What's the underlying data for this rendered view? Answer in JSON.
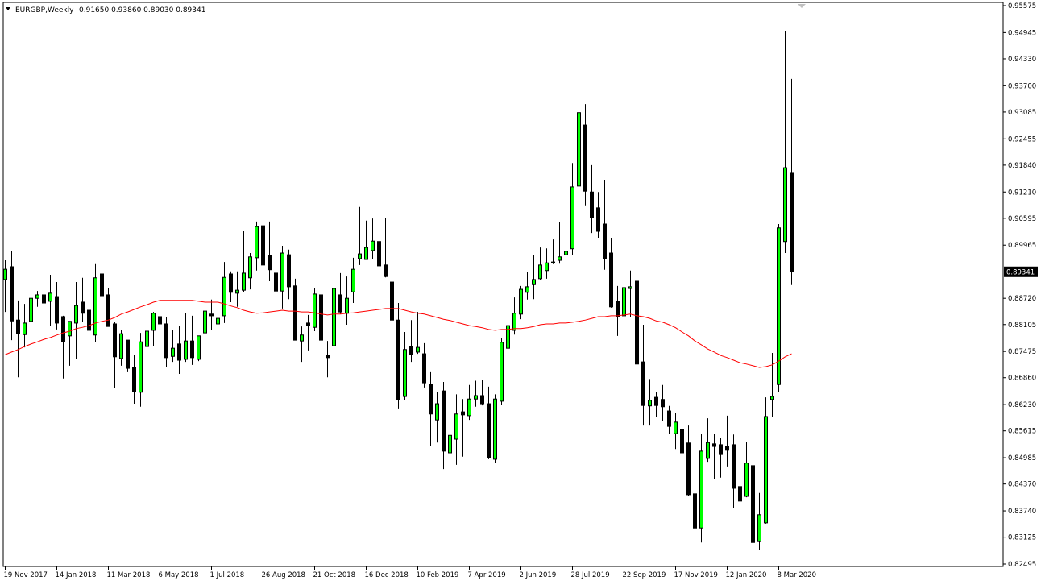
{
  "header": {
    "symbol_timeframe": "EURGBP,Weekly",
    "ohlc": "0.91650 0.93860 0.89030 0.89341",
    "menu_icon": "triangle-down-icon"
  },
  "colors": {
    "bull_body": "#00FF00",
    "bear_body": "#000000",
    "outline": "#000000",
    "moving_average": "#FF0000",
    "bid_line": "#C0C0C0",
    "price_label_bg": "#000000"
  },
  "chart_data": {
    "type": "candlestick",
    "symbol": "EURGBP",
    "timeframe": "Weekly",
    "ylim": [
      0.82495,
      0.95575
    ],
    "current_price": "0.89341",
    "y_ticks": [
      "0.95575",
      "0.94945",
      "0.94330",
      "0.93700",
      "0.93085",
      "0.92455",
      "0.91840",
      "0.91210",
      "0.90595",
      "0.89965",
      "0.88720",
      "0.88105",
      "0.87475",
      "0.86860",
      "0.86230",
      "0.85615",
      "0.84985",
      "0.84370",
      "0.83740",
      "0.83125",
      "0.82495"
    ],
    "x_ticks": [
      "19 Nov 2017",
      "14 Jan 2018",
      "11 Mar 2018",
      "6 May 2018",
      "1 Jul 2018",
      "26 Aug 2018",
      "21 Oct 2018",
      "16 Dec 2018",
      "10 Feb 2019",
      "7 Apr 2019",
      "2 Jun 2019",
      "28 Jul 2019",
      "22 Sep 2019",
      "17 Nov 2019",
      "12 Jan 2020",
      "8 Mar 2020"
    ],
    "x_tick_every_bars": 8,
    "candles_ohlc": [
      [
        0.8916,
        0.8961,
        0.884,
        0.894
      ],
      [
        0.8946,
        0.8982,
        0.8774,
        0.8819
      ],
      [
        0.8821,
        0.8867,
        0.8687,
        0.8789
      ],
      [
        0.8787,
        0.8859,
        0.8757,
        0.8814
      ],
      [
        0.8818,
        0.8889,
        0.8791,
        0.8872
      ],
      [
        0.8872,
        0.8889,
        0.8852,
        0.888
      ],
      [
        0.888,
        0.8923,
        0.8842,
        0.8861
      ],
      [
        0.8865,
        0.8927,
        0.8808,
        0.8884
      ],
      [
        0.8876,
        0.891,
        0.8799,
        0.8814
      ],
      [
        0.8829,
        0.8831,
        0.8684,
        0.877
      ],
      [
        0.8784,
        0.8818,
        0.8714,
        0.8818
      ],
      [
        0.8814,
        0.891,
        0.8729,
        0.8855
      ],
      [
        0.8863,
        0.892,
        0.8816,
        0.8837
      ],
      [
        0.8844,
        0.8844,
        0.8784,
        0.8797
      ],
      [
        0.8786,
        0.8952,
        0.8769,
        0.892
      ],
      [
        0.8929,
        0.8967,
        0.8874,
        0.8878
      ],
      [
        0.888,
        0.8897,
        0.8806,
        0.8806
      ],
      [
        0.8812,
        0.8816,
        0.8661,
        0.8735
      ],
      [
        0.8731,
        0.8797,
        0.8714,
        0.8789
      ],
      [
        0.8774,
        0.8774,
        0.8699,
        0.8708
      ],
      [
        0.871,
        0.874,
        0.8625,
        0.8653
      ],
      [
        0.8652,
        0.8791,
        0.8618,
        0.877
      ],
      [
        0.8759,
        0.8803,
        0.8678,
        0.8795
      ],
      [
        0.8797,
        0.884,
        0.8759,
        0.8837
      ],
      [
        0.8829,
        0.8837,
        0.8727,
        0.8812
      ],
      [
        0.8812,
        0.8827,
        0.871,
        0.8733
      ],
      [
        0.8736,
        0.8797,
        0.8723,
        0.8755
      ],
      [
        0.8765,
        0.8808,
        0.8695,
        0.8727
      ],
      [
        0.8729,
        0.8837,
        0.8723,
        0.8772
      ],
      [
        0.8772,
        0.8831,
        0.8716,
        0.8733
      ],
      [
        0.8729,
        0.8784,
        0.8725,
        0.8784
      ],
      [
        0.8791,
        0.8889,
        0.8778,
        0.8842
      ],
      [
        0.8835,
        0.8869,
        0.8797,
        0.8831
      ],
      [
        0.8812,
        0.8901,
        0.881,
        0.8825
      ],
      [
        0.8831,
        0.8957,
        0.8814,
        0.8921
      ],
      [
        0.8929,
        0.8935,
        0.8863,
        0.8886
      ],
      [
        0.8884,
        0.8935,
        0.8852,
        0.8891
      ],
      [
        0.8891,
        0.9029,
        0.8887,
        0.8931
      ],
      [
        0.892,
        0.8978,
        0.8893,
        0.8969
      ],
      [
        0.8967,
        0.9052,
        0.8937,
        0.904
      ],
      [
        0.9042,
        0.9099,
        0.8935,
        0.895
      ],
      [
        0.8972,
        0.9052,
        0.8912,
        0.8939
      ],
      [
        0.8931,
        0.8957,
        0.8876,
        0.8889
      ],
      [
        0.8889,
        0.8995,
        0.8848,
        0.8978
      ],
      [
        0.8974,
        0.8986,
        0.887,
        0.8899
      ],
      [
        0.8901,
        0.8918,
        0.8774,
        0.8774
      ],
      [
        0.8772,
        0.8806,
        0.8723,
        0.8786
      ],
      [
        0.8814,
        0.8833,
        0.875,
        0.8808
      ],
      [
        0.8804,
        0.8895,
        0.8795,
        0.8882
      ],
      [
        0.888,
        0.8939,
        0.8753,
        0.8774
      ],
      [
        0.8738,
        0.8772,
        0.8687,
        0.8733
      ],
      [
        0.8761,
        0.8904,
        0.8653,
        0.8895
      ],
      [
        0.888,
        0.8931,
        0.8835,
        0.884
      ],
      [
        0.8837,
        0.8923,
        0.881,
        0.8872
      ],
      [
        0.8887,
        0.8967,
        0.8861,
        0.894
      ],
      [
        0.8965,
        0.9086,
        0.895,
        0.8976
      ],
      [
        0.8963,
        0.9054,
        0.8963,
        0.8991
      ],
      [
        0.8984,
        0.9059,
        0.8963,
        0.9006
      ],
      [
        0.9005,
        0.9069,
        0.8927,
        0.8948
      ],
      [
        0.895,
        0.9061,
        0.8921,
        0.8923
      ],
      [
        0.891,
        0.8982,
        0.8757,
        0.8821
      ],
      [
        0.8821,
        0.8861,
        0.8614,
        0.8635
      ],
      [
        0.8642,
        0.8793,
        0.8633,
        0.8752
      ],
      [
        0.8759,
        0.8821,
        0.8723,
        0.874
      ],
      [
        0.8746,
        0.884,
        0.8742,
        0.8757
      ],
      [
        0.8742,
        0.8767,
        0.8663,
        0.8674
      ],
      [
        0.867,
        0.8699,
        0.8527,
        0.8601
      ],
      [
        0.8587,
        0.8653,
        0.8534,
        0.8625
      ],
      [
        0.8655,
        0.8676,
        0.8472,
        0.8514
      ],
      [
        0.851,
        0.8721,
        0.851,
        0.8551
      ],
      [
        0.8542,
        0.8647,
        0.8482,
        0.8601
      ],
      [
        0.8606,
        0.8636,
        0.8501,
        0.8599
      ],
      [
        0.8597,
        0.8669,
        0.8587,
        0.8636
      ],
      [
        0.8636,
        0.8679,
        0.8618,
        0.8644
      ],
      [
        0.8644,
        0.8681,
        0.8621,
        0.8625
      ],
      [
        0.8625,
        0.8665,
        0.8495,
        0.8499
      ],
      [
        0.8495,
        0.8647,
        0.8487,
        0.8636
      ],
      [
        0.8631,
        0.8778,
        0.8623,
        0.8769
      ],
      [
        0.8755,
        0.885,
        0.8723,
        0.8808
      ],
      [
        0.8797,
        0.8874,
        0.8787,
        0.8837
      ],
      [
        0.8835,
        0.8901,
        0.8823,
        0.8893
      ],
      [
        0.8886,
        0.8933,
        0.8869,
        0.8899
      ],
      [
        0.8904,
        0.8974,
        0.887,
        0.8916
      ],
      [
        0.8918,
        0.8991,
        0.8914,
        0.895
      ],
      [
        0.8937,
        0.8989,
        0.8918,
        0.8955
      ],
      [
        0.8955,
        0.901,
        0.8952,
        0.8957
      ],
      [
        0.8961,
        0.905,
        0.8953,
        0.8969
      ],
      [
        0.8974,
        0.9005,
        0.8889,
        0.8982
      ],
      [
        0.8988,
        0.9189,
        0.8974,
        0.9133
      ],
      [
        0.9135,
        0.9316,
        0.9128,
        0.9307
      ],
      [
        0.9278,
        0.9327,
        0.9088,
        0.9123
      ],
      [
        0.9121,
        0.9184,
        0.9025,
        0.9061
      ],
      [
        0.9084,
        0.9121,
        0.9014,
        0.9029
      ],
      [
        0.9046,
        0.9148,
        0.8939,
        0.8965
      ],
      [
        0.8978,
        0.9014,
        0.885,
        0.8852
      ],
      [
        0.8865,
        0.8901,
        0.8784,
        0.8829
      ],
      [
        0.8831,
        0.8903,
        0.8801,
        0.8897
      ],
      [
        0.8895,
        0.8937,
        0.8829,
        0.8899
      ],
      [
        0.8912,
        0.902,
        0.8693,
        0.8718
      ],
      [
        0.8723,
        0.881,
        0.8574,
        0.8621
      ],
      [
        0.862,
        0.8683,
        0.8574,
        0.8633
      ],
      [
        0.864,
        0.8652,
        0.8595,
        0.8621
      ],
      [
        0.8635,
        0.8669,
        0.8584,
        0.8618
      ],
      [
        0.8608,
        0.862,
        0.8554,
        0.8572
      ],
      [
        0.8555,
        0.8604,
        0.8519,
        0.8582
      ],
      [
        0.8565,
        0.8584,
        0.8495,
        0.851
      ],
      [
        0.8533,
        0.8574,
        0.841,
        0.8412
      ],
      [
        0.8414,
        0.8508,
        0.8274,
        0.8334
      ],
      [
        0.8334,
        0.8555,
        0.83,
        0.8514
      ],
      [
        0.8497,
        0.8591,
        0.8489,
        0.8534
      ],
      [
        0.8531,
        0.8555,
        0.8448,
        0.8525
      ],
      [
        0.8529,
        0.8544,
        0.8452,
        0.8506
      ],
      [
        0.8525,
        0.8597,
        0.8478,
        0.8516
      ],
      [
        0.8529,
        0.8553,
        0.838,
        0.8427
      ],
      [
        0.8431,
        0.8487,
        0.8387,
        0.8397
      ],
      [
        0.8408,
        0.8536,
        0.8406,
        0.8486
      ],
      [
        0.848,
        0.8504,
        0.8295,
        0.83
      ],
      [
        0.8302,
        0.8416,
        0.8283,
        0.8365
      ],
      [
        0.8346,
        0.864,
        0.8344,
        0.8595
      ],
      [
        0.8635,
        0.8744,
        0.8593,
        0.8642
      ],
      [
        0.867,
        0.9046,
        0.8652,
        0.9037
      ],
      [
        0.9005,
        0.9499,
        0.8978,
        0.9178
      ],
      [
        0.9165,
        0.9386,
        0.8903,
        0.89341
      ]
    ],
    "moving_average": [
      0.874,
      0.8746,
      0.8752,
      0.8759,
      0.8765,
      0.877,
      0.8776,
      0.878,
      0.8786,
      0.8791,
      0.8795,
      0.8801,
      0.8804,
      0.8808,
      0.8814,
      0.8818,
      0.8821,
      0.8827,
      0.8835,
      0.884,
      0.8846,
      0.8852,
      0.8857,
      0.8863,
      0.8867,
      0.8867,
      0.8867,
      0.8867,
      0.8867,
      0.8867,
      0.8865,
      0.8863,
      0.8863,
      0.8863,
      0.8859,
      0.8854,
      0.885,
      0.8844,
      0.884,
      0.8837,
      0.8838,
      0.884,
      0.8842,
      0.8844,
      0.8842,
      0.8842,
      0.884,
      0.884,
      0.8838,
      0.8835,
      0.8833,
      0.8835,
      0.8835,
      0.8837,
      0.8838,
      0.884,
      0.8842,
      0.8844,
      0.8846,
      0.8848,
      0.8848,
      0.8848,
      0.8844,
      0.884,
      0.8837,
      0.8835,
      0.8831,
      0.8827,
      0.8823,
      0.882,
      0.8816,
      0.8812,
      0.8808,
      0.8806,
      0.8803,
      0.8799,
      0.8797,
      0.8799,
      0.8799,
      0.8801,
      0.8801,
      0.8803,
      0.8806,
      0.881,
      0.8812,
      0.8812,
      0.8814,
      0.8814,
      0.8816,
      0.8818,
      0.8821,
      0.8825,
      0.8829,
      0.8829,
      0.8831,
      0.8831,
      0.8833,
      0.8835,
      0.8831,
      0.8829,
      0.8825,
      0.8819,
      0.8816,
      0.881,
      0.8803,
      0.8793,
      0.8784,
      0.8772,
      0.8763,
      0.8753,
      0.8746,
      0.8738,
      0.8733,
      0.8727,
      0.8721,
      0.8718,
      0.8714,
      0.871,
      0.8712,
      0.8716,
      0.8725,
      0.8735,
      0.8742
    ],
    "grid": false,
    "legend": "none"
  }
}
